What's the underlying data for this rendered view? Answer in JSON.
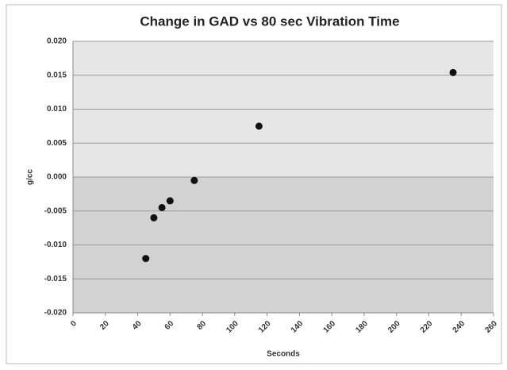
{
  "chart_data": {
    "type": "scatter",
    "title": "Change in GAD vs 80 sec Vibration Time",
    "x_label": "Seconds",
    "y_label": "g/cc",
    "series": [
      {
        "color": "#111111",
        "x": [
          45,
          50,
          55,
          60,
          75,
          115,
          235
        ],
        "values": [
          -0.012,
          -0.006,
          -0.0045,
          -0.0035,
          -0.0005,
          0.0075,
          0.0154
        ]
      }
    ],
    "xlim": [
      0,
      260
    ],
    "xticks": [
      0,
      20,
      40,
      60,
      80,
      100,
      120,
      140,
      160,
      180,
      200,
      220,
      240,
      260
    ],
    "ylim": [
      -0.02,
      0.02
    ],
    "yticks": [
      {
        "value": -0.02,
        "label": "-0.020"
      },
      {
        "value": -0.015,
        "label": "-0.015"
      },
      {
        "value": -0.01,
        "label": "-0.010"
      },
      {
        "value": -0.005,
        "label": "-0.005"
      },
      {
        "value": 0,
        "label": "0.000"
      },
      {
        "value": 0.005,
        "label": "0.005"
      },
      {
        "value": 0.01,
        "label": "0.010"
      },
      {
        "value": 0.015,
        "label": "0.015"
      },
      {
        "value": 0.02,
        "label": "0.020"
      }
    ],
    "grid": true
  }
}
